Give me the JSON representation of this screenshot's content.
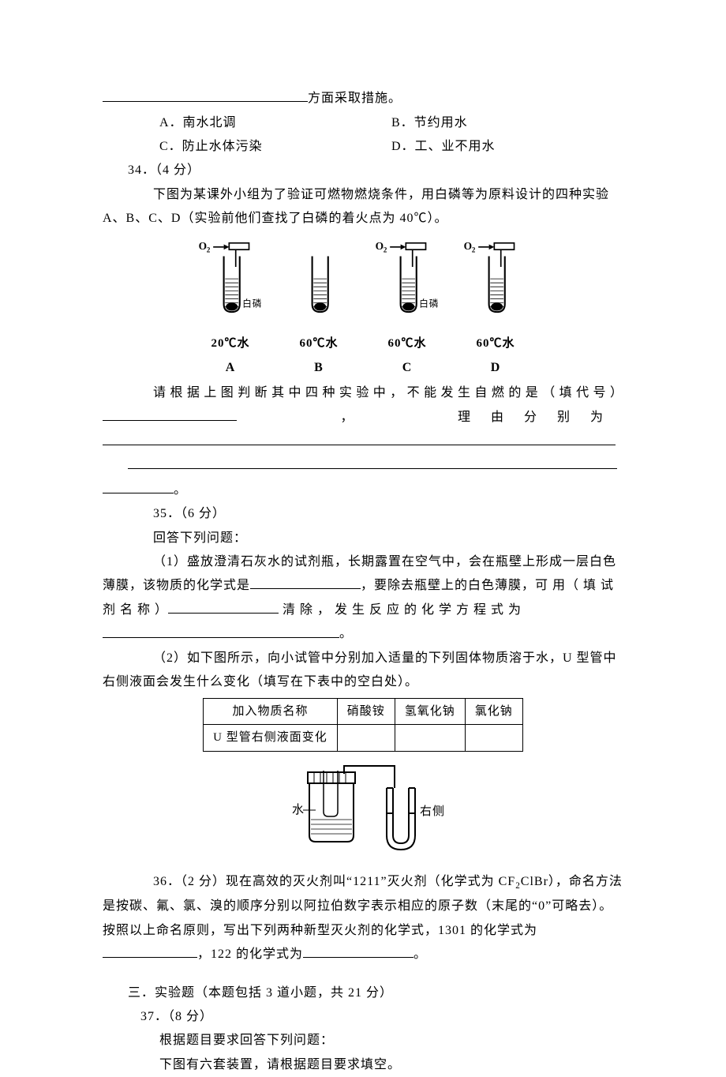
{
  "colors": {
    "text": "#000000",
    "bg": "#ffffff",
    "line": "#000000"
  },
  "typography": {
    "body_font": "SimSun",
    "body_size_pt": 12,
    "bold_labels": true
  },
  "q33_tail": "方面采取措施。",
  "q33_options": {
    "A": "A．南水北调",
    "B": "B．节约用水",
    "C": "C．防止水体污染",
    "D": "D．工、业不用水"
  },
  "q34": {
    "header": "34．（4 分）",
    "intro": "下图为某课外小组为了验证可燃物燃烧条件，用白磷等为原料设计的四种实验 A、B、C、D（实验前他们查找了白磷的着火点为 40℃）。",
    "experiments": [
      {
        "id": "A",
        "o2": true,
        "phos_label": "白磷",
        "temp": "20℃水",
        "letter": "A"
      },
      {
        "id": "B",
        "o2": false,
        "phos_label": "",
        "temp": "60℃水",
        "letter": "B"
      },
      {
        "id": "C",
        "o2": true,
        "phos_label": "白磷",
        "temp": "60℃水",
        "letter": "C"
      },
      {
        "id": "D",
        "o2": true,
        "phos_label": "",
        "temp": "60℃水",
        "letter": "D"
      }
    ],
    "o2_label": "O",
    "prompt_line1": "请根据上图判断其中四种实验中，不能发生自燃的是（填代号）",
    "prompt_sep": "，",
    "prompt_reason": "理由分别为",
    "prompt_end": "。"
  },
  "q35": {
    "header": "35．（6 分）",
    "lead": "回答下列问题：",
    "p1_a": "（1）盛放澄清石灰水的试剂瓶，长期露置在空气中，会在瓶壁上形成一层白色薄膜，该物质的化学式是",
    "p1_b": "，要除去瓶壁上的白色薄膜，可 用（ 填 试 剂 名 称 ）",
    "p1_c": " 清 除 ， 发 生 反 应 的 化 学 方 程 式 为",
    "p1_end": "。",
    "p2": "（2）如下图所示，向小试管中分别加入适量的下列固体物质溶于水，U 型管中右侧液面会发生什么变化（填写在下表中的空白处）。",
    "table": {
      "r1": [
        "加入物质名称",
        "硝酸铵",
        "氢氧化钠",
        "氯化钠"
      ],
      "r2": [
        "U 型管右侧液面变化",
        "",
        "",
        ""
      ]
    },
    "apparatus": {
      "water": "水",
      "right": "右侧"
    }
  },
  "q36": {
    "header": "36．（2 分）现在高效的灭火剂叫“1211”灭火剂（化学式为 CF",
    "header2": "ClBr），命名方法是按碳、氟、氯、溴的顺序分别以阿拉伯数字表示相应的原子数（末尾的“0”可略去）。按照以上命名原则，写出下列两种新型灭火剂的化学式，1301 的化学式为",
    "mid": "，122 的化学式为",
    "end": "。"
  },
  "section3": {
    "title": "三．实验题（本题包括 3 道小题，共 21 分）",
    "q37_header": "37．（8 分）",
    "q37_line1": "根据题目要求回答下列问题：",
    "q37_line2": "下图有六套装置，请根据题目要求填空。"
  }
}
